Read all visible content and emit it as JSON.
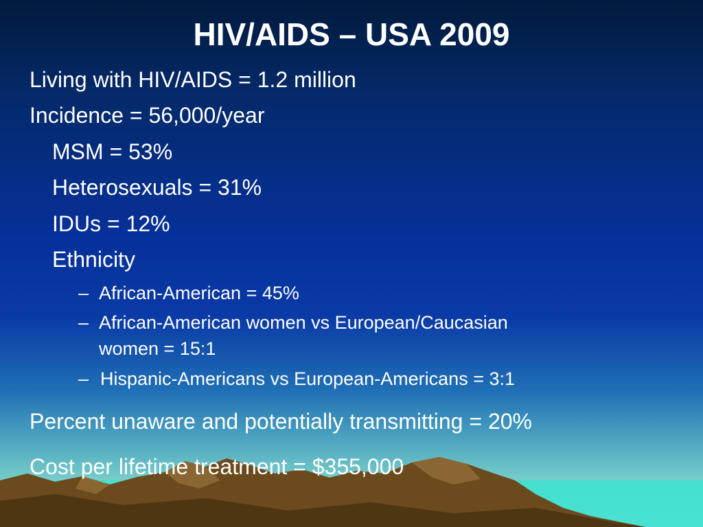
{
  "slide": {
    "title": "HIV/AIDS – USA 2009",
    "living": "Living with HIV/AIDS = 1.2 million",
    "incidence": "Incidence = 56,000/year",
    "msm": "MSM = 53%",
    "hetero": "Heterosexuals = 31%",
    "idus": "IDUs = 12%",
    "ethnicity": "Ethnicity",
    "dash": "–",
    "eth_items": [
      "African-American = 45%",
      "African-American women vs European/Caucasian",
      "women = 15:1",
      "Hispanic-Americans vs European-Americans = 3:1"
    ],
    "unaware": "Percent unaware and potentially transmitting = 20%",
    "cost": "Cost per lifetime treatment = $355,000"
  },
  "colors": {
    "text": "#ffffff",
    "sky_top": "#021a3c",
    "sky_mid": "#0a3aa6",
    "horizon": "#a6ece0",
    "mountain": "#6b4a1e"
  }
}
